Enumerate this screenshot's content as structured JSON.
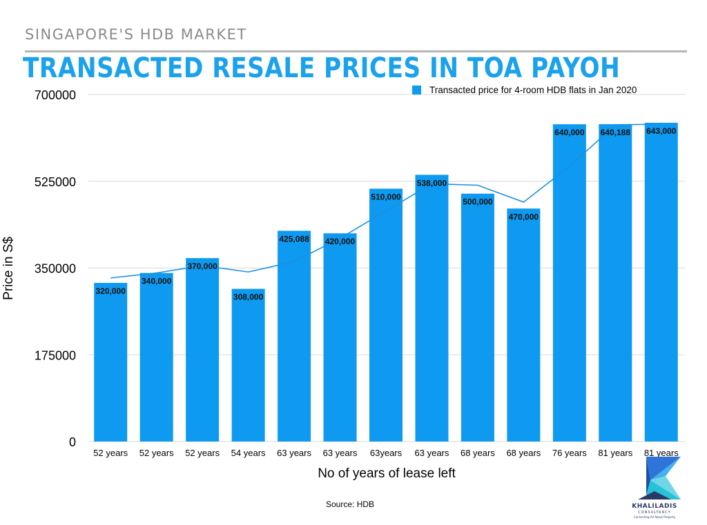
{
  "header": {
    "kicker": "SINGAPORE'S HDB MARKET",
    "title": "TRANSACTED RESALE PRICES IN TOA PAYOH"
  },
  "chart_data": {
    "type": "bar",
    "categories": [
      "52 years",
      "52 years",
      "52 years",
      "54 years",
      "63 years",
      "63 years",
      "63years",
      "63 years",
      "68 years",
      "68 years",
      "76 years",
      "81 years",
      "81 years"
    ],
    "series": [
      {
        "name": "Transacted price for 4-room HDB flats in Jan 2020",
        "values": [
          320000,
          340000,
          370000,
          308000,
          425088,
          420000,
          510000,
          538000,
          500000,
          470000,
          640000,
          640188,
          643000
        ],
        "labels": [
          "320,000",
          "340,000",
          "370,000",
          "308,000",
          "425,088",
          "420,000",
          "510,000",
          "538,000",
          "500,000",
          "470,000",
          "640,000",
          "640,188",
          "643,000"
        ]
      }
    ],
    "trendline": [
      330000,
      340000,
      355000,
      342000,
      363000,
      410000,
      465000,
      520000,
      517000,
      483000,
      555000,
      639000,
      640000
    ],
    "yticks": [
      "0",
      "175000",
      "350000",
      "525000",
      "700000"
    ],
    "ylim": [
      0,
      700000
    ],
    "xlabel": "No of years of lease left",
    "ylabel": "Price in S$",
    "legend_position": "top-right",
    "grid": true,
    "colors": {
      "bar": "#0e9af0",
      "line": "#1c8fe0",
      "grid": "#d9d9d9",
      "title": "#1aa2ec"
    }
  },
  "source": "Source: HDB",
  "logo": {
    "name": "KHALILADIS",
    "subtitle": "CONSULTANCY",
    "tagline": "Connecting All About Property"
  }
}
